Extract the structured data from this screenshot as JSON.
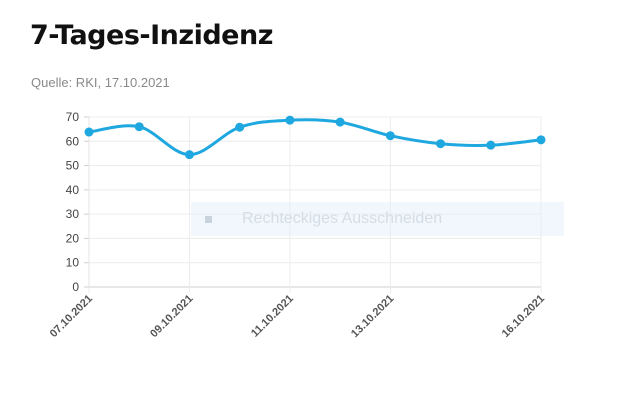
{
  "header": {
    "title": "7-Tages-Inzidenz",
    "source": "Quelle: RKI, 17.10.2021"
  },
  "overlay": {
    "label": "Rechteckiges Ausschneiden"
  },
  "chart_data": {
    "type": "line",
    "title": "7-Tages-Inzidenz",
    "xlabel": "",
    "ylabel": "",
    "x": [
      "07.10.2021",
      "08.10.2021",
      "09.10.2021",
      "10.10.2021",
      "11.10.2021",
      "12.10.2021",
      "13.10.2021",
      "14.10.2021",
      "15.10.2021",
      "16.10.2021"
    ],
    "x_tick_labels": [
      "07.10.2021",
      "09.10.2021",
      "11.10.2021",
      "13.10.2021",
      "16.10.2021"
    ],
    "series": [
      {
        "values": [
          63.8,
          66.0,
          54.5,
          65.8,
          68.7,
          67.9,
          62.3,
          59.0,
          58.4,
          60.6
        ],
        "color": "#1fa8e0"
      }
    ],
    "ylim": [
      0,
      70
    ],
    "yticks": [
      0,
      10,
      20,
      30,
      40,
      50,
      60,
      70
    ],
    "grid": true,
    "legend": "none"
  }
}
